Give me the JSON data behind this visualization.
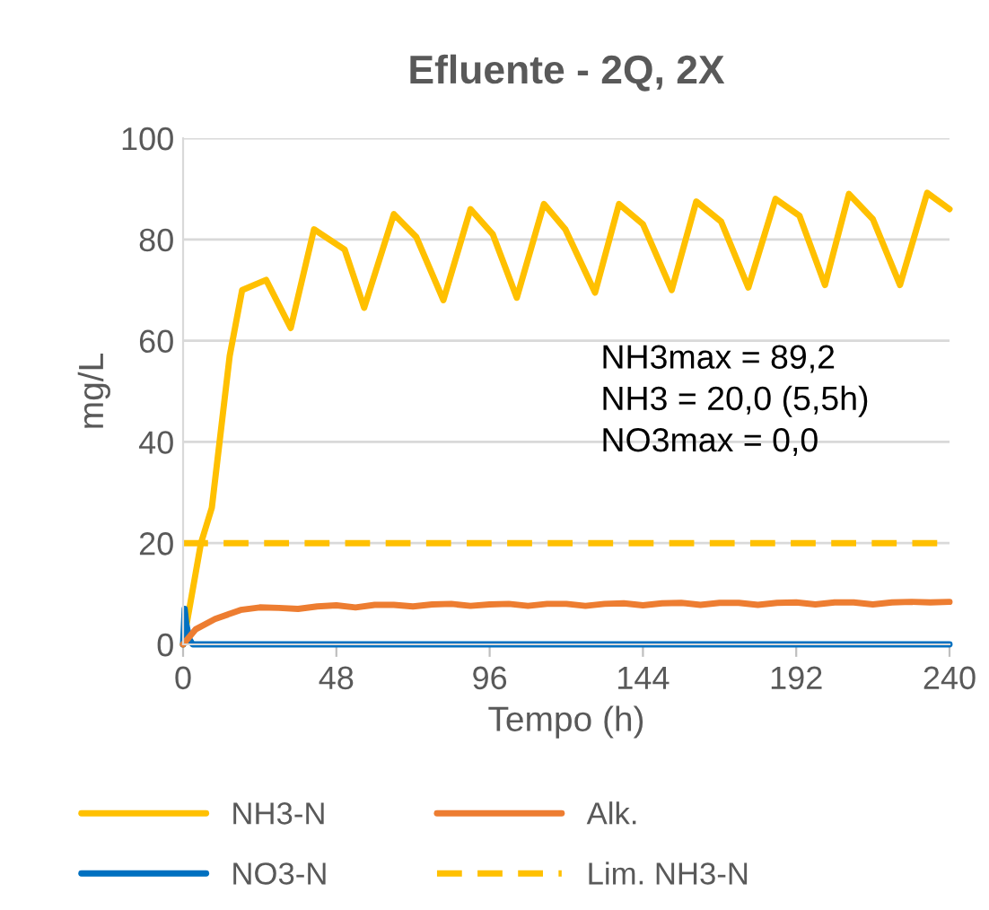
{
  "chart_data": {
    "type": "line",
    "title": "Efluente - 2Q, 2X",
    "xlabel": "Tempo (h)",
    "ylabel": "mg/L",
    "xlim": [
      0,
      240
    ],
    "xticks": [
      0,
      48,
      96,
      144,
      192,
      240
    ],
    "ylim": [
      0,
      100
    ],
    "yticks": [
      0,
      20,
      40,
      60,
      80,
      100
    ],
    "grid": "y",
    "legend": "bottom",
    "marker": "none",
    "series": [
      {
        "name": "NH3-N",
        "color": "#ffc000",
        "line_style": "solid",
        "x": [
          0,
          5.6,
          9,
          14.6,
          18.5,
          26,
          33.7,
          41,
          50.6,
          56.7,
          66,
          73,
          81.5,
          90,
          97,
          104.5,
          113,
          119.7,
          129,
          136.5,
          144,
          153,
          160.7,
          168.5,
          177,
          185.5,
          193,
          201,
          208.5,
          216,
          224.5,
          233,
          240
        ],
        "values": [
          0,
          20,
          27,
          57,
          70,
          72,
          62.5,
          82,
          78,
          66.5,
          85,
          80.5,
          68,
          86,
          81,
          68.5,
          87,
          82,
          69.5,
          87,
          83,
          70,
          87.5,
          83.5,
          70.5,
          88,
          84.7,
          71,
          89,
          84,
          71,
          89.2,
          86
        ]
      },
      {
        "name": "NO3-N",
        "color": "#0070c0",
        "line_style": "solid",
        "x": [
          0,
          0.5,
          1,
          2,
          3,
          240
        ],
        "values": [
          0,
          7,
          4,
          1,
          0,
          0
        ]
      },
      {
        "name": "Alk.",
        "color": "#ed7d31",
        "line_style": "solid",
        "x": [
          0,
          4,
          10,
          18,
          24,
          30,
          36,
          42,
          48,
          54,
          60,
          66,
          72,
          78,
          84,
          90,
          96,
          102,
          108,
          114,
          120,
          126,
          132,
          138,
          144,
          150,
          156,
          162,
          168,
          174,
          180,
          186,
          192,
          198,
          204,
          210,
          216,
          222,
          228,
          234,
          240
        ],
        "values": [
          0,
          3,
          5,
          6.8,
          7.3,
          7.2,
          7,
          7.5,
          7.7,
          7.3,
          7.8,
          7.8,
          7.5,
          7.9,
          8,
          7.6,
          7.9,
          8,
          7.6,
          8,
          8,
          7.6,
          8,
          8.1,
          7.7,
          8.1,
          8.2,
          7.8,
          8.2,
          8.2,
          7.8,
          8.2,
          8.3,
          7.9,
          8.3,
          8.3,
          7.9,
          8.3,
          8.4,
          8.3,
          8.4
        ]
      },
      {
        "name": "Lim. NH3-N",
        "color": "#ffc000",
        "line_style": "dashed",
        "x": [
          0,
          240
        ],
        "values": [
          20,
          20
        ]
      }
    ],
    "annotations": [
      "NH3max = 89,2",
      "NH3 = 20,0 (5,5h)",
      "NO3max = 0,0"
    ]
  }
}
